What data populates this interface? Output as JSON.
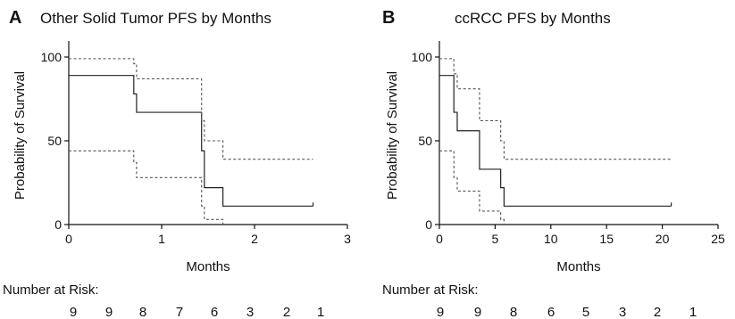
{
  "chart_data": [
    {
      "type": "line",
      "panel_label": "A",
      "title": "Other Solid Tumor PFS by Months",
      "xlabel": "Months",
      "ylabel": "Probability of Survival",
      "xlim": [
        0,
        3
      ],
      "ylim": [
        0,
        100
      ],
      "x_ticks": [
        "0",
        "1",
        "2",
        "3"
      ],
      "y_ticks": [
        "0",
        "50",
        "100"
      ],
      "step": true,
      "series": [
        {
          "role": "estimate",
          "x": [
            0,
            0.7,
            0.73,
            1.43,
            1.46,
            1.66,
            2.63
          ],
          "y": [
            89,
            78,
            67,
            44,
            22,
            11,
            11
          ]
        },
        {
          "role": "upper_ci",
          "x": [
            0,
            0.7,
            0.73,
            1.43,
            1.46,
            1.66,
            2.63
          ],
          "y": [
            99,
            96,
            87,
            62,
            50,
            39,
            39
          ]
        },
        {
          "role": "lower_ci",
          "x": [
            0,
            0.7,
            0.73,
            1.43,
            1.46,
            1.66
          ],
          "y": [
            44,
            37,
            28,
            11,
            3,
            0
          ]
        }
      ],
      "risk_label": "Number at Risk:",
      "risk_counts": [
        "9",
        "9",
        "8",
        "7",
        "6",
        "3",
        "2",
        "1"
      ]
    },
    {
      "type": "line",
      "panel_label": "B",
      "title": "ccRCC PFS by Months",
      "xlabel": "Months",
      "ylabel": "Probability of Survival",
      "xlim": [
        0,
        25
      ],
      "ylim": [
        0,
        100
      ],
      "x_ticks": [
        "0",
        "5",
        "10",
        "15",
        "20",
        "25"
      ],
      "y_ticks": [
        "0",
        "50",
        "100"
      ],
      "step": true,
      "series": [
        {
          "role": "estimate",
          "x": [
            0,
            1.3,
            1.6,
            3.6,
            5.5,
            5.8,
            20.8
          ],
          "y": [
            89,
            67,
            56,
            33,
            22,
            11,
            11
          ]
        },
        {
          "role": "upper_ci",
          "x": [
            0,
            1.3,
            1.6,
            3.6,
            5.5,
            5.8,
            20.8
          ],
          "y": [
            99,
            90,
            81,
            62,
            50,
            39,
            39
          ]
        },
        {
          "role": "lower_ci",
          "x": [
            0,
            1.3,
            1.6,
            3.6,
            5.5,
            5.8
          ],
          "y": [
            44,
            28,
            20,
            8,
            3,
            0
          ]
        }
      ],
      "risk_label": "Number at Risk:",
      "risk_counts": [
        "9",
        "9",
        "8",
        "6",
        "5",
        "3",
        "2",
        "1"
      ]
    }
  ]
}
